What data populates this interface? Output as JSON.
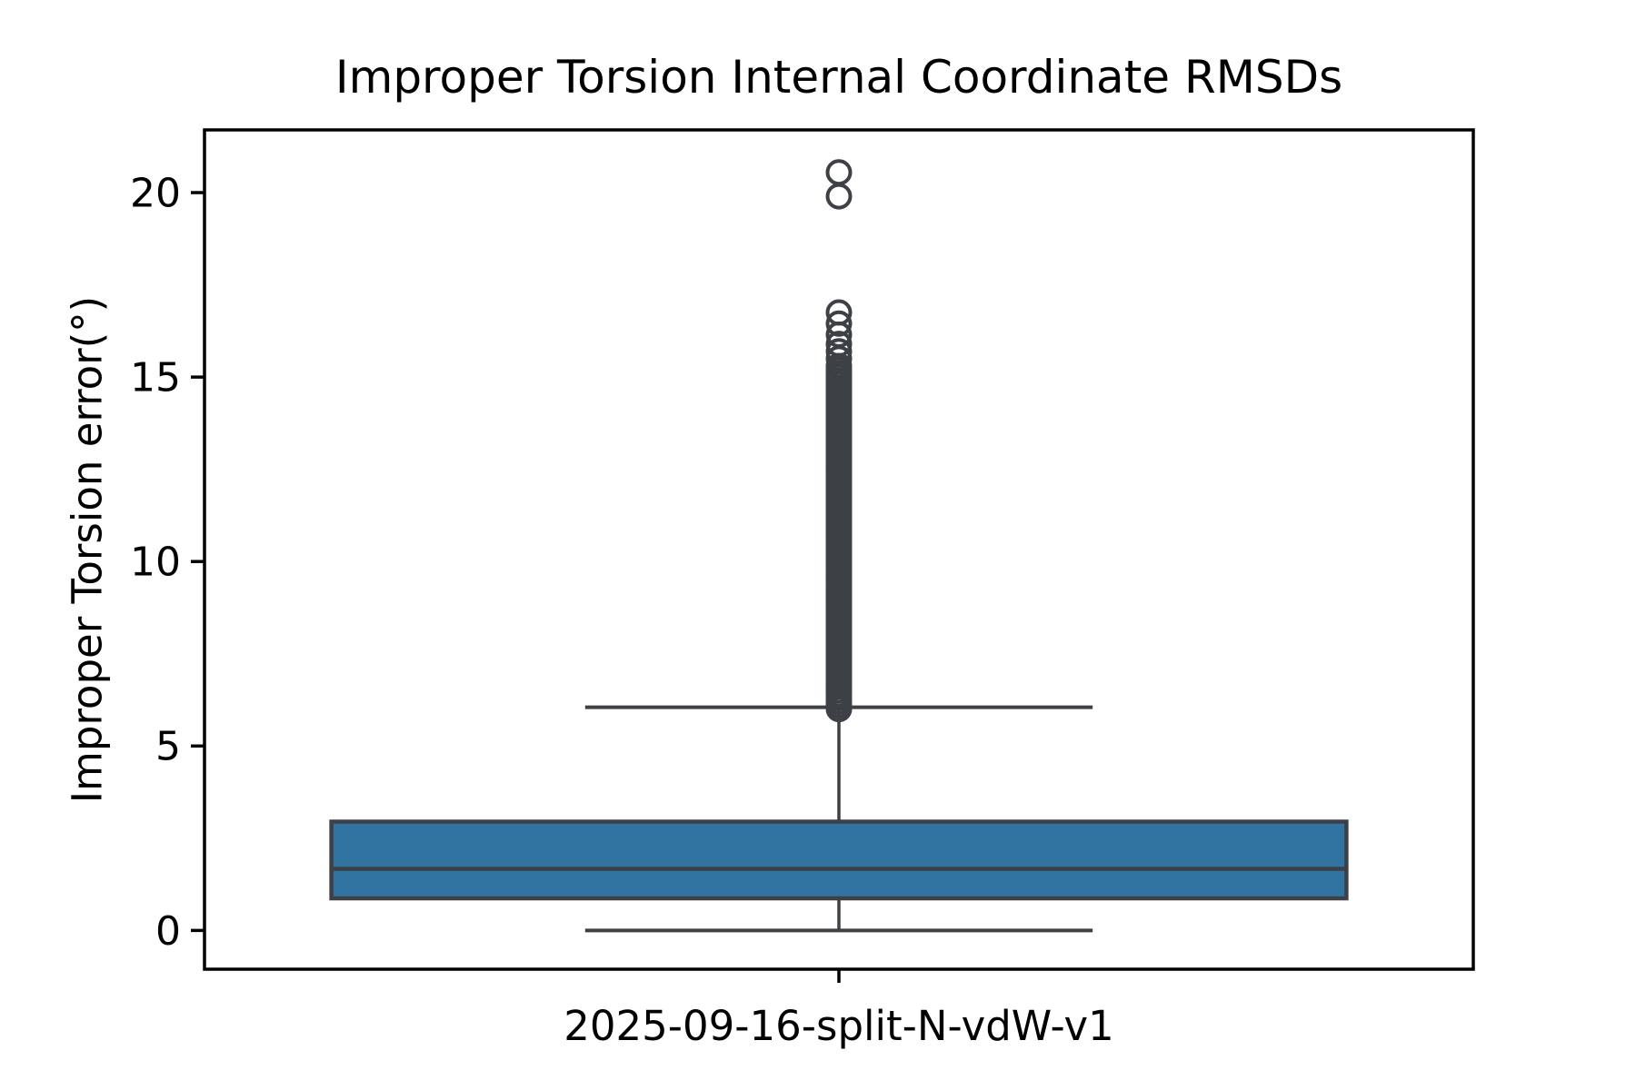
{
  "chart_data": {
    "type": "boxplot",
    "title": "Improper Torsion Internal Coordinate RMSDs",
    "ylabel": "Improper Torsion error(°)",
    "xlabel": "",
    "categories": [
      "2025-09-16-split-N-vdW-v1"
    ],
    "ylim": [
      -1.05,
      21.7
    ],
    "yticks": [
      0,
      5,
      10,
      15,
      20
    ],
    "grid": false,
    "legend": false,
    "series": [
      {
        "name": "2025-09-16-split-N-vdW-v1",
        "whisker_low": 0.0,
        "q1": 0.87,
        "median": 1.67,
        "q3": 2.95,
        "whisker_high": 6.05,
        "outliers": [
          6.0,
          6.1,
          6.2,
          6.3,
          6.4,
          6.5,
          6.6,
          6.7,
          6.8,
          6.9,
          7.0,
          7.1,
          7.2,
          7.3,
          7.4,
          7.5,
          7.6,
          7.7,
          7.8,
          7.9,
          8.0,
          8.1,
          8.2,
          8.3,
          8.4,
          8.5,
          8.6,
          8.7,
          8.8,
          8.9,
          9.0,
          9.1,
          9.2,
          9.3,
          9.4,
          9.5,
          9.6,
          9.7,
          9.8,
          9.9,
          10.0,
          10.1,
          10.2,
          10.3,
          10.4,
          10.5,
          10.6,
          10.7,
          10.8,
          10.9,
          11.0,
          11.1,
          11.2,
          11.3,
          11.4,
          11.5,
          11.6,
          11.7,
          11.8,
          11.9,
          12.0,
          12.1,
          12.2,
          12.3,
          12.4,
          12.5,
          12.6,
          12.7,
          12.8,
          12.9,
          13.0,
          13.1,
          13.2,
          13.3,
          13.4,
          13.5,
          13.6,
          13.7,
          13.8,
          13.9,
          14.0,
          14.1,
          14.2,
          14.3,
          14.4,
          14.5,
          14.6,
          14.7,
          14.8,
          14.9,
          15.0,
          15.1,
          15.2,
          15.3,
          15.5,
          15.7,
          15.9,
          16.15,
          16.45,
          16.75,
          19.9,
          20.55
        ]
      }
    ],
    "colors": {
      "box_fill": "#3274a1",
      "box_line": "#3d4045",
      "flier_edge": "#3d4045",
      "spine": "#000000",
      "text": "#000000"
    }
  }
}
